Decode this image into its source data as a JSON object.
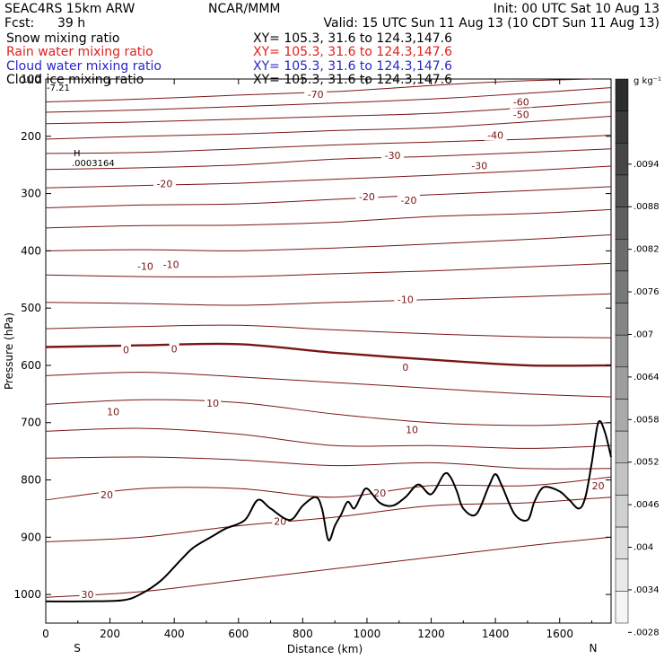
{
  "header": {
    "model": "SEAC4RS 15km ARW",
    "org": "NCAR/MMM",
    "init": "Init: 00 UTC Sat 10 Aug 13",
    "fcst_label": "Fcst:",
    "fcst_value": "39 h",
    "valid": "Valid: 15 UTC Sun 11 Aug 13 (10 CDT Sun 11 Aug 13)"
  },
  "fields": [
    {
      "name": "Snow mixing ratio",
      "xy": "XY= 105.3, 31.6 to 124.3,147.6",
      "color": "#000000"
    },
    {
      "name": "Rain water mixing ratio",
      "xy": "XY= 105.3, 31.6 to 124.3,147.6",
      "color": "#e0201c"
    },
    {
      "name": "Cloud water mixing ratio",
      "xy": "XY= 105.3, 31.6 to 124.3,147.6",
      "color": "#2a26c8"
    },
    {
      "name": "Cloud ice mixing ratio",
      "xy": "XY= 105.3, 31.6 to 124.3,147.6",
      "color": "#000000"
    }
  ],
  "chart_data": {
    "type": "line",
    "xlabel": "Distance (km)",
    "ylabel": "Pressure (hPa)",
    "xlim": [
      0,
      1760
    ],
    "ylim": [
      1050,
      100
    ],
    "x_ticks": [
      0,
      200,
      400,
      600,
      800,
      1000,
      1200,
      1400,
      1600
    ],
    "y_ticks": [
      200,
      300,
      400,
      500,
      600,
      700,
      800,
      900,
      1000
    ],
    "y_top_label": "100",
    "x_end_labels": {
      "left": "S",
      "right": "N"
    },
    "colorbar": {
      "unit": "g kg⁻¹",
      "labels": [
        ".0094",
        ".0088",
        ".0082",
        ".0076",
        ".007",
        ".0064",
        ".0058",
        ".0052",
        ".0046",
        ".004",
        ".0034",
        ".0028"
      ]
    },
    "annotations": {
      "max_label": "H",
      "max_value": ".0003164",
      "corner_label": "-7.21"
    },
    "temperature_contours": [
      {
        "level": -70,
        "points": [
          [
            0,
            140
          ],
          [
            300,
            135
          ],
          [
            600,
            128
          ],
          [
            900,
            122
          ],
          [
            1100,
            115
          ],
          [
            1300,
            108
          ],
          [
            1500,
            103
          ],
          [
            1700,
            100
          ]
        ]
      },
      {
        "level": -60,
        "points": [
          [
            0,
            158
          ],
          [
            300,
            154
          ],
          [
            600,
            148
          ],
          [
            900,
            142
          ],
          [
            1200,
            135
          ],
          [
            1500,
            125
          ],
          [
            1760,
            115
          ]
        ]
      },
      {
        "level": -50,
        "points": [
          [
            0,
            178
          ],
          [
            300,
            175
          ],
          [
            600,
            170
          ],
          [
            900,
            165
          ],
          [
            1200,
            160
          ],
          [
            1500,
            150
          ],
          [
            1760,
            140
          ]
        ]
      },
      {
        "level": -40,
        "points": [
          [
            0,
            205
          ],
          [
            300,
            200
          ],
          [
            600,
            196
          ],
          [
            900,
            190
          ],
          [
            1200,
            185
          ],
          [
            1500,
            175
          ],
          [
            1760,
            165
          ]
        ]
      },
      {
        "level": -40,
        "points": [
          [
            0,
            230
          ],
          [
            300,
            228
          ],
          [
            600,
            222
          ],
          [
            900,
            215
          ],
          [
            1200,
            210
          ],
          [
            1500,
            205
          ],
          [
            1760,
            198
          ]
        ]
      },
      {
        "level": -30,
        "points": [
          [
            0,
            258
          ],
          [
            300,
            255
          ],
          [
            600,
            250
          ],
          [
            900,
            240
          ],
          [
            1200,
            235
          ],
          [
            1500,
            228
          ],
          [
            1760,
            222
          ]
        ]
      },
      {
        "level": -30,
        "points": [
          [
            0,
            290
          ],
          [
            300,
            286
          ],
          [
            600,
            282
          ],
          [
            900,
            275
          ],
          [
            1200,
            268
          ],
          [
            1500,
            260
          ],
          [
            1760,
            252
          ]
        ]
      },
      {
        "level": -20,
        "points": [
          [
            0,
            325
          ],
          [
            300,
            320
          ],
          [
            600,
            318
          ],
          [
            900,
            310
          ],
          [
            1200,
            302
          ],
          [
            1500,
            295
          ],
          [
            1760,
            288
          ]
        ]
      },
      {
        "level": -20,
        "points": [
          [
            0,
            360
          ],
          [
            300,
            356
          ],
          [
            600,
            355
          ],
          [
            900,
            350
          ],
          [
            1200,
            340
          ],
          [
            1500,
            335
          ],
          [
            1760,
            328
          ]
        ]
      },
      {
        "level": -10,
        "points": [
          [
            0,
            400
          ],
          [
            300,
            398
          ],
          [
            600,
            400
          ],
          [
            900,
            395
          ],
          [
            1200,
            388
          ],
          [
            1500,
            380
          ],
          [
            1760,
            372
          ]
        ]
      },
      {
        "level": -10,
        "points": [
          [
            0,
            442
          ],
          [
            300,
            445
          ],
          [
            600,
            445
          ],
          [
            900,
            440
          ],
          [
            1200,
            435
          ],
          [
            1500,
            428
          ],
          [
            1760,
            422
          ]
        ]
      },
      {
        "level": -10,
        "points": [
          [
            0,
            490
          ],
          [
            300,
            492
          ],
          [
            600,
            495
          ],
          [
            900,
            490
          ],
          [
            1200,
            485
          ],
          [
            1500,
            480
          ],
          [
            1760,
            475
          ]
        ]
      },
      {
        "level": 0,
        "points": [
          [
            0,
            536
          ],
          [
            300,
            532
          ],
          [
            600,
            530
          ],
          [
            900,
            538
          ],
          [
            1200,
            545
          ],
          [
            1500,
            550
          ],
          [
            1760,
            552
          ]
        ]
      },
      {
        "level": 0,
        "points": [
          [
            0,
            568
          ],
          [
            300,
            565
          ],
          [
            600,
            563
          ],
          [
            900,
            578
          ],
          [
            1200,
            590
          ],
          [
            1500,
            600
          ],
          [
            1760,
            600
          ]
        ]
      },
      {
        "level": 10,
        "points": [
          [
            0,
            618
          ],
          [
            300,
            612
          ],
          [
            600,
            620
          ],
          [
            900,
            630
          ],
          [
            1200,
            640
          ],
          [
            1500,
            650
          ],
          [
            1760,
            655
          ]
        ]
      },
      {
        "level": 10,
        "points": [
          [
            0,
            668
          ],
          [
            300,
            660
          ],
          [
            600,
            665
          ],
          [
            900,
            685
          ],
          [
            1200,
            700
          ],
          [
            1500,
            705
          ],
          [
            1760,
            700
          ]
        ]
      },
      {
        "level": 10,
        "points": [
          [
            0,
            715
          ],
          [
            300,
            710
          ],
          [
            600,
            720
          ],
          [
            900,
            740
          ],
          [
            1200,
            740
          ],
          [
            1500,
            745
          ],
          [
            1760,
            740
          ]
        ]
      },
      {
        "level": 10,
        "points": [
          [
            0,
            762
          ],
          [
            300,
            760
          ],
          [
            600,
            765
          ],
          [
            900,
            775
          ],
          [
            1200,
            770
          ],
          [
            1500,
            780
          ],
          [
            1760,
            780
          ]
        ]
      },
      {
        "level": 20,
        "points": [
          [
            0,
            835
          ],
          [
            300,
            815
          ],
          [
            600,
            815
          ],
          [
            900,
            830
          ],
          [
            1200,
            810
          ],
          [
            1500,
            810
          ],
          [
            1760,
            795
          ]
        ]
      },
      {
        "level": 20,
        "points": [
          [
            0,
            908
          ],
          [
            300,
            900
          ],
          [
            600,
            880
          ],
          [
            900,
            865
          ],
          [
            1200,
            845
          ],
          [
            1500,
            840
          ],
          [
            1760,
            830
          ]
        ]
      },
      {
        "level": 30,
        "points": [
          [
            0,
            1005
          ],
          [
            300,
            995
          ],
          [
            600,
            975
          ],
          [
            900,
            955
          ],
          [
            1200,
            935
          ],
          [
            1500,
            915
          ],
          [
            1760,
            900
          ]
        ]
      }
    ],
    "contour_labels": [
      {
        "text": "-70",
        "x": 840,
        "y": 127
      },
      {
        "text": "-60",
        "x": 1480,
        "y": 140
      },
      {
        "text": "-50",
        "x": 1480,
        "y": 162
      },
      {
        "text": "-40",
        "x": 1400,
        "y": 198
      },
      {
        "text": "-30",
        "x": 1080,
        "y": 233
      },
      {
        "text": "-30",
        "x": 1350,
        "y": 251
      },
      {
        "text": "-20",
        "x": 370,
        "y": 283
      },
      {
        "text": "-20",
        "x": 1000,
        "y": 305
      },
      {
        "text": "-20",
        "x": 1130,
        "y": 312
      },
      {
        "text": "-10",
        "x": 310,
        "y": 427
      },
      {
        "text": "-10",
        "x": 390,
        "y": 424
      },
      {
        "text": "-10",
        "x": 1120,
        "y": 485
      },
      {
        "text": "0",
        "x": 250,
        "y": 573
      },
      {
        "text": "0",
        "x": 400,
        "y": 571
      },
      {
        "text": "0",
        "x": 1120,
        "y": 603
      },
      {
        "text": "10",
        "x": 210,
        "y": 681
      },
      {
        "text": "10",
        "x": 520,
        "y": 666
      },
      {
        "text": "10",
        "x": 1140,
        "y": 712
      },
      {
        "text": "20",
        "x": 190,
        "y": 826
      },
      {
        "text": "20",
        "x": 1040,
        "y": 823
      },
      {
        "text": "20",
        "x": 730,
        "y": 872
      },
      {
        "text": "20",
        "x": 1720,
        "y": 810
      },
      {
        "text": "30",
        "x": 130,
        "y": 1000
      }
    ],
    "terrain": {
      "x": [
        0,
        120,
        240,
        300,
        360,
        420,
        460,
        520,
        560,
        620,
        660,
        700,
        760,
        800,
        840,
        860,
        880,
        900,
        920,
        940,
        960,
        980,
        1000,
        1040,
        1080,
        1120,
        1160,
        1200,
        1240,
        1260,
        1280,
        1300,
        1340,
        1380,
        1400,
        1420,
        1460,
        1500,
        1520,
        1540,
        1560,
        1600,
        1630,
        1660,
        1680,
        1700,
        1720,
        1740,
        1760
      ],
      "pressure": [
        1012,
        1012,
        1010,
        998,
        975,
        940,
        918,
        898,
        885,
        870,
        835,
        850,
        870,
        845,
        830,
        850,
        905,
        880,
        860,
        838,
        850,
        830,
        815,
        840,
        845,
        830,
        808,
        825,
        790,
        795,
        820,
        850,
        860,
        810,
        790,
        810,
        860,
        870,
        840,
        818,
        812,
        820,
        835,
        850,
        830,
        770,
        700,
        715,
        760
      ]
    }
  }
}
